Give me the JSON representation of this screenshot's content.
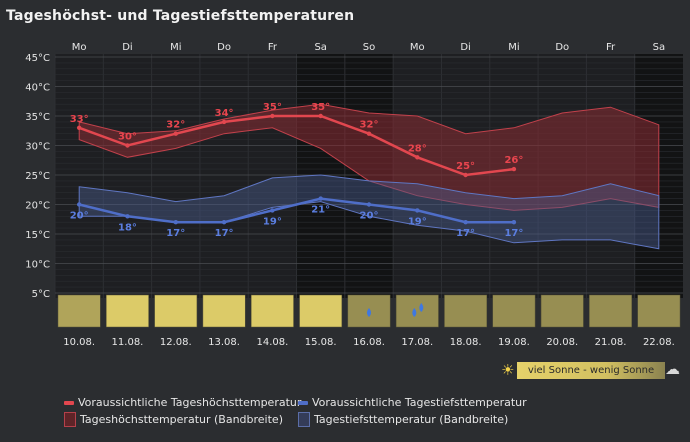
{
  "title": "Tageshöchst- und Tagestiefsttemperaturen",
  "chart_data": {
    "type": "line",
    "title": "Tageshöchst- und Tagestiefsttemperaturen",
    "y_unit": "°C",
    "ylim": [
      0,
      45
    ],
    "yticks": [
      "5°C",
      "10°C",
      "15°C",
      "20°C",
      "25°C",
      "30°C",
      "35°C",
      "40°C",
      "45°C"
    ],
    "weekdays": [
      "Mo",
      "Di",
      "Mi",
      "Do",
      "Fr",
      "Sa",
      "So",
      "Mo",
      "Di",
      "Mi",
      "Do",
      "Fr",
      "Sa"
    ],
    "dates": [
      "10.08.",
      "11.08.",
      "12.08.",
      "13.08.",
      "14.08.",
      "15.08.",
      "16.08.",
      "17.08.",
      "18.08.",
      "19.08.",
      "20.08.",
      "21.08.",
      "22.08."
    ],
    "weekend_indices": [
      5,
      6,
      12
    ],
    "max_temp": {
      "name": "Voraussichtliche Tageshöchsttemperatur",
      "color": "#e2474f",
      "label_color": "#e9454e",
      "values": [
        33,
        30,
        32,
        34,
        35,
        35,
        32,
        28,
        25,
        26
      ]
    },
    "min_temp": {
      "name": "Voraussichtliche Tagestiefsttemperatur",
      "color": "#4f6ec8",
      "label_color": "#5b7ee0",
      "values": [
        20,
        18,
        17,
        17,
        19,
        21,
        20,
        19,
        17,
        17
      ]
    },
    "max_band": {
      "name": "Tageshöchsttemperatur (Bandbreite)",
      "color": "#8a2c33",
      "upper": [
        34,
        32,
        32.5,
        34.5,
        36,
        37,
        35.5,
        35,
        32,
        33,
        35.5,
        36.5,
        33.5
      ],
      "lower": [
        31,
        28,
        29.5,
        32,
        33,
        29.5,
        24,
        21.5,
        20,
        19,
        19.5,
        21,
        19.5
      ]
    },
    "min_band": {
      "name": "Tagestiefsttemperatur (Bandbreite)",
      "color": "#4a5a8c",
      "upper": [
        23,
        22,
        20.5,
        21.5,
        24.5,
        25,
        24,
        23.5,
        22,
        21,
        21.5,
        23.5,
        21.5
      ],
      "lower": [
        18,
        18,
        17,
        17,
        19.5,
        20.5,
        18,
        16.5,
        15.5,
        13.5,
        14,
        14,
        12.5
      ]
    },
    "sunshine": [
      {
        "level": 0.55,
        "rain": false
      },
      {
        "level": 1.0,
        "rain": false
      },
      {
        "level": 1.0,
        "rain": false
      },
      {
        "level": 1.0,
        "rain": false
      },
      {
        "level": 1.0,
        "rain": false
      },
      {
        "level": 1.0,
        "rain": false
      },
      {
        "level": 0.3,
        "rain": true,
        "drops": 1
      },
      {
        "level": 0.3,
        "rain": true,
        "drops": 2
      },
      {
        "level": 0.3,
        "rain": false
      },
      {
        "level": 0.3,
        "rain": false
      },
      {
        "level": 0.3,
        "rain": false
      },
      {
        "level": 0.3,
        "rain": false
      },
      {
        "level": 0.3,
        "rain": false
      }
    ]
  },
  "legend": {
    "max_line": "Voraussichtliche Tageshöchsttemperatur",
    "min_line": "Voraussichtliche Tagestiefsttemperatur",
    "max_band": "Tageshöchsttemperatur (Bandbreite)",
    "min_band": "Tagestiefsttemperatur (Bandbreite)"
  },
  "sun_scale": {
    "label": "viel Sonne - wenig Sonne",
    "sun_icon": "sun-icon",
    "cloud_icon": "cloud-icon"
  },
  "colors": {
    "background": "#2b2d30",
    "plot_bg": "#1e1f22",
    "weekend_bg": "#121314",
    "sun_full": "#dccb68",
    "sun_low": "#7a7448",
    "rain_drop": "#3f78e0"
  }
}
